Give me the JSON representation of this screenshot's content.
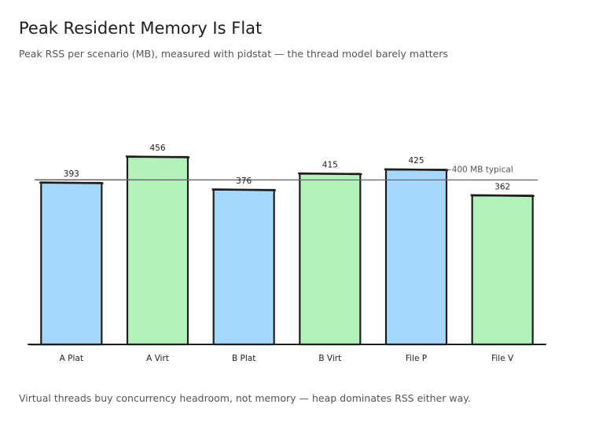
{
  "header": {
    "title": "Peak Resident Memory Is Flat",
    "subtitle": "Peak RSS per scenario (MB), measured with pidstat — the thread model barely matters"
  },
  "footer": {
    "caption": "Virtual threads buy concurrency headroom, not memory — heap dominates RSS either way."
  },
  "chart_data": {
    "type": "bar",
    "categories": [
      "A Plat",
      "A Virt",
      "B Plat",
      "B Virt",
      "File P",
      "File V"
    ],
    "values": [
      393,
      456,
      376,
      415,
      425,
      362
    ],
    "ylim": [
      0,
      456
    ],
    "reference_line": {
      "value": 400,
      "label": "~400 MB typical"
    },
    "grid": false,
    "legend": "none",
    "colors": {
      "platform": "#a5d8ff",
      "virtual": "#b2f2bb",
      "stroke": "#1e1e1e",
      "reference": "#666666",
      "label": "#1e1e1e"
    },
    "bar_color_keys": [
      "platform",
      "virtual",
      "platform",
      "virtual",
      "platform",
      "virtual"
    ]
  }
}
